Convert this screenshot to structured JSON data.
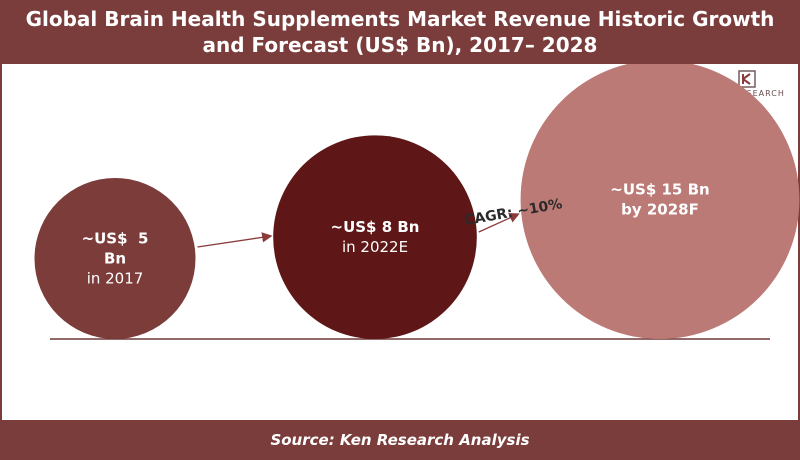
{
  "title": "Global Brain Health Supplements Market Revenue Historic Growth and Forecast (US$ Bn), 2017– 2028",
  "source": "Source: Ken Research Analysis",
  "logo": {
    "text": "KEN RESEARCH",
    "icon": "ken-research-logo-icon"
  },
  "colors": {
    "header": "#7a3d3b",
    "bubble_2017": "#7b3c3a",
    "bubble_2022": "#5f1616",
    "bubble_2028": "#bc7a76",
    "baseline": "#6b3a38",
    "arrow": "#8a3b3b"
  },
  "chart_data": {
    "type": "bubble",
    "title": "Global Brain Health Supplements Market Revenue Historic Growth and Forecast (US$ Bn), 2017– 2028",
    "points": [
      {
        "year": "2017",
        "value": 5,
        "label_lines": [
          "~US$  5",
          "Bn",
          "in 2017"
        ]
      },
      {
        "year": "2022E",
        "value": 8,
        "label_lines": [
          "~US$ 8 Bn",
          "in 2022E"
        ]
      },
      {
        "year": "2028F",
        "value": 15,
        "label_lines": [
          "~US$ 15 Bn",
          "by 2028F"
        ]
      }
    ],
    "annotation": "CAGR: ~10%",
    "unit": "US$ Bn"
  }
}
